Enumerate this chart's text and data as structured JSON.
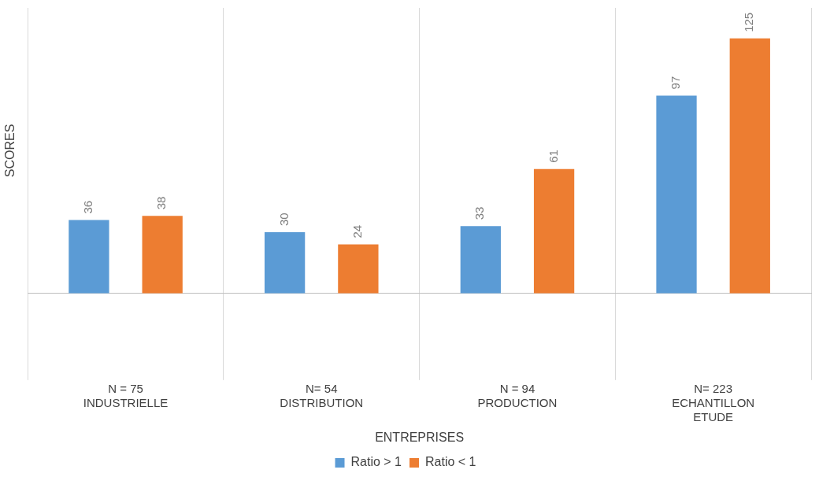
{
  "chart_data": {
    "type": "bar",
    "xlabel": "ENTREPRISES",
    "ylabel": "SCORES",
    "categories": [
      "N = 75\nINDUSTRIELLE",
      "N= 54\nDISTRIBUTION",
      "N = 94\nPRODUCTION",
      "N= 223\nECHANTILLON\nETUDE"
    ],
    "series": [
      {
        "name": "Ratio > 1",
        "color": "#5b9bd5",
        "values": [
          36,
          30,
          33,
          97
        ]
      },
      {
        "name": "Ratio < 1",
        "color": "#ed7d31",
        "values": [
          38,
          24,
          61,
          125
        ]
      }
    ],
    "data_labels": true,
    "grid": "x",
    "legend": "bottom"
  }
}
